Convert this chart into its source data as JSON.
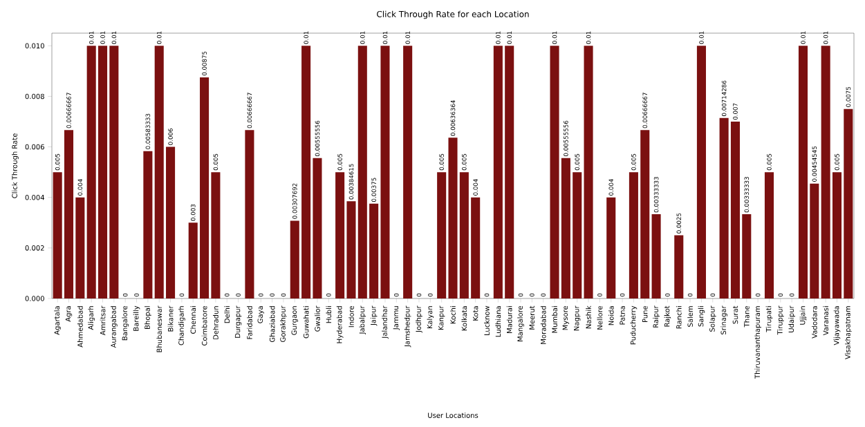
{
  "chart_data": {
    "type": "bar",
    "title": "Click Through Rate for each Location",
    "xlabel": "User Locations",
    "ylabel": "Click Through Rate",
    "categories": [
      "Agartala",
      "Agra",
      "Ahmedabad",
      "Aligarh",
      "Amritsar",
      "Aurangabad",
      "Bangalore",
      "Bareilly",
      "Bhopal",
      "Bhubaneswar",
      "Bikaner",
      "Chandigarh",
      "Chennai",
      "Coimbatore",
      "Dehradun",
      "Delhi",
      "Durgapur",
      "Faridabad",
      "Gaya",
      "Ghaziabad",
      "Gorakhpur",
      "Gurgaon",
      "Guwahati",
      "Gwalior",
      "Hubli",
      "Hyderabad",
      "Indore",
      "Jabalpur",
      "Jaipur",
      "Jalandhar",
      "Jammu",
      "Jamshedpur",
      "Jodhpur",
      "Kalyan",
      "Kanpur",
      "Kochi",
      "Kolkata",
      "Kota",
      "Lucknow",
      "Ludhiana",
      "Madurai",
      "Mangalore",
      "Meerut",
      "Moradabad",
      "Mumbai",
      "Mysore",
      "Nagpur",
      "Nashik",
      "Nellore",
      "Noida",
      "Patna",
      "Puducherry",
      "Pune",
      "Raipur",
      "Rajkot",
      "Ranchi",
      "Salem",
      "Sangli",
      "Solapur",
      "Srinagar",
      "Surat",
      "Thane",
      "Thiruvananthapuram",
      "Tirupati",
      "Tiruppur",
      "Udaipur",
      "Ujjain",
      "Vadodara",
      "Varanasi",
      "Vijayawada",
      "Visakhapatnam"
    ],
    "values": [
      0.005,
      0.00666667,
      0.004,
      0.01,
      0.01,
      0.01,
      0,
      0,
      0.00583333,
      0.01,
      0.006,
      0,
      0.003,
      0.00875,
      0.005,
      0,
      0,
      0.00666667,
      0,
      0,
      0,
      0.00307692,
      0.01,
      0.00555556,
      0,
      0.005,
      0.00384615,
      0.01,
      0.00375,
      0.01,
      0,
      0.01,
      0,
      0,
      0.005,
      0.00636364,
      0.005,
      0.004,
      0,
      0.01,
      0.01,
      0,
      0,
      0,
      0.01,
      0.00555556,
      0.005,
      0.01,
      0,
      0.004,
      0,
      0.005,
      0.00666667,
      0.00333333,
      0,
      0.0025,
      0,
      0.01,
      0,
      0.00714286,
      0.007,
      0.00333333,
      0,
      0.005,
      0,
      0,
      0.01,
      0.00454545,
      0.01,
      0.005,
      0.0075
    ],
    "value_labels": [
      "0.005",
      "0.00666667",
      "0.004",
      "0.01",
      "0.01",
      "0.01",
      "0",
      "0",
      "0.00583333",
      "0.01",
      "0.006",
      "0",
      "0.003",
      "0.00875",
      "0.005",
      "0",
      "0",
      "0.00666667",
      "0",
      "0",
      "0",
      "0.00307692",
      "0.01",
      "0.00555556",
      "0",
      "0.005",
      "0.00384615",
      "0.01",
      "0.00375",
      "0.01",
      "0",
      "0.01",
      "0",
      "0",
      "0.005",
      "0.00636364",
      "0.005",
      "0.004",
      "0",
      "0.01",
      "0.01",
      "0",
      "0",
      "0",
      "0.01",
      "0.00555556",
      "0.005",
      "0.01",
      "0",
      "0.004",
      "0",
      "0.005",
      "0.00666667",
      "0.00333333",
      "0",
      "0.0025",
      "0",
      "0.01",
      "0",
      "0.00714286",
      "0.007",
      "0.00333333",
      "0",
      "0.005",
      "0",
      "0",
      "0.01",
      "0.00454545",
      "0.01",
      "0.005",
      "0.0075"
    ],
    "color": "#7b1010",
    "ylim": [
      0,
      0.0105
    ],
    "yticks": [
      {
        "value": 0,
        "label": "0.000"
      },
      {
        "value": 0.002,
        "label": "0.002"
      },
      {
        "value": 0.004,
        "label": "0.004"
      },
      {
        "value": 0.006,
        "label": "0.006"
      },
      {
        "value": 0.008,
        "label": "0.008"
      },
      {
        "value": 0.01,
        "label": "0.010"
      }
    ],
    "grid": false
  }
}
